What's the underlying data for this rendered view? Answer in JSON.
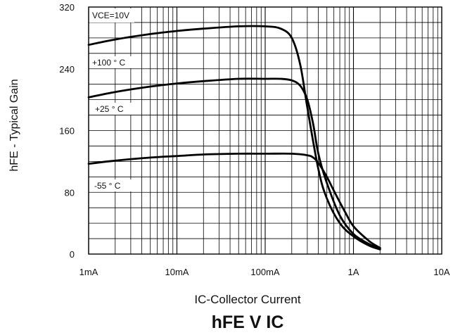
{
  "chart_data": {
    "type": "line",
    "title": "hFE V IC",
    "xlabel": "IC-Collector Current",
    "ylabel": "hFE - Typical Gain",
    "xscale": "log",
    "xlim": [
      0.001,
      10
    ],
    "ylim": [
      0,
      320
    ],
    "grid": true,
    "x_ticks": [
      {
        "value": 0.001,
        "label": "1mA"
      },
      {
        "value": 0.01,
        "label": "10mA"
      },
      {
        "value": 0.1,
        "label": "100mA"
      },
      {
        "value": 1,
        "label": "1A"
      },
      {
        "value": 10,
        "label": "10A"
      }
    ],
    "y_ticks": [
      {
        "value": 0,
        "label": "0"
      },
      {
        "value": 80,
        "label": "80"
      },
      {
        "value": 160,
        "label": "160"
      },
      {
        "value": 240,
        "label": "240"
      },
      {
        "value": 320,
        "label": "320"
      }
    ],
    "condition": "VCE=10V",
    "series": [
      {
        "name": "+100 ° C",
        "points": [
          [
            0.001,
            271
          ],
          [
            0.002,
            278
          ],
          [
            0.005,
            285
          ],
          [
            0.01,
            289
          ],
          [
            0.02,
            292
          ],
          [
            0.05,
            295
          ],
          [
            0.1,
            295
          ],
          [
            0.15,
            292
          ],
          [
            0.2,
            280
          ],
          [
            0.25,
            245
          ],
          [
            0.3,
            190
          ],
          [
            0.4,
            110
          ],
          [
            0.5,
            72
          ],
          [
            0.7,
            40
          ],
          [
            1,
            23
          ],
          [
            1.5,
            11
          ],
          [
            2,
            6
          ]
        ]
      },
      {
        "name": "+25 ° C",
        "points": [
          [
            0.001,
            203
          ],
          [
            0.002,
            210
          ],
          [
            0.005,
            217
          ],
          [
            0.01,
            221
          ],
          [
            0.02,
            224
          ],
          [
            0.05,
            227
          ],
          [
            0.1,
            227
          ],
          [
            0.15,
            227
          ],
          [
            0.2,
            225
          ],
          [
            0.25,
            218
          ],
          [
            0.3,
            200
          ],
          [
            0.35,
            168
          ],
          [
            0.4,
            130
          ],
          [
            0.5,
            92
          ],
          [
            0.7,
            50
          ],
          [
            1,
            26
          ],
          [
            1.5,
            13
          ],
          [
            2,
            7
          ]
        ]
      },
      {
        "name": "-55 ° C",
        "points": [
          [
            0.001,
            117
          ],
          [
            0.002,
            121
          ],
          [
            0.005,
            125
          ],
          [
            0.01,
            127
          ],
          [
            0.02,
            129
          ],
          [
            0.05,
            130
          ],
          [
            0.1,
            130
          ],
          [
            0.2,
            130
          ],
          [
            0.3,
            128
          ],
          [
            0.35,
            125
          ],
          [
            0.4,
            118
          ],
          [
            0.5,
            100
          ],
          [
            0.6,
            82
          ],
          [
            0.8,
            55
          ],
          [
            1,
            36
          ],
          [
            1.5,
            17
          ],
          [
            2,
            8
          ]
        ]
      }
    ]
  }
}
